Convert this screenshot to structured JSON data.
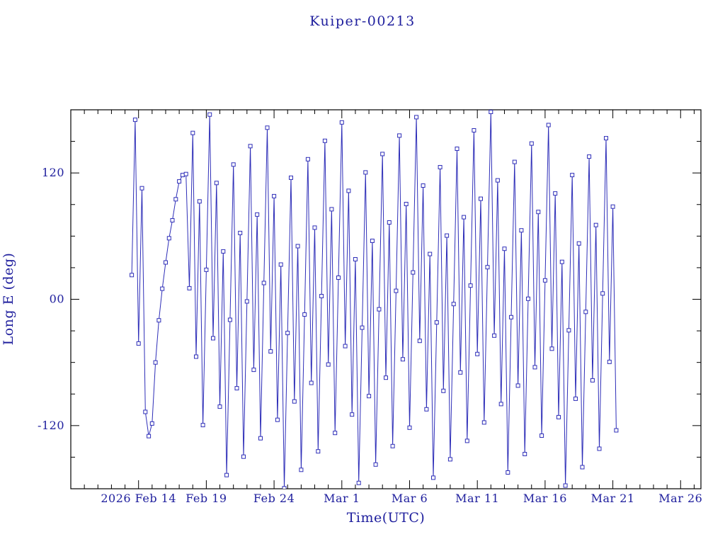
{
  "page": {
    "background": "#ffffff"
  },
  "chart_data": {
    "type": "line",
    "title": "Kuiper-00213",
    "xlabel": "Time(UTC)",
    "ylabel": "Long E (deg)",
    "axis": {
      "x_unit": "days from plot left edge",
      "x_range_days": [
        0,
        46.5
      ],
      "ylim": [
        -180,
        180
      ],
      "x_major_ticks": [
        {
          "day": 5,
          "label": "2026 Feb 14"
        },
        {
          "day": 10,
          "label": "Feb 19"
        },
        {
          "day": 15,
          "label": "Feb 24"
        },
        {
          "day": 20,
          "label": "Mar 1"
        },
        {
          "day": 25,
          "label": "Mar 6"
        },
        {
          "day": 30,
          "label": "Mar 11"
        },
        {
          "day": 35,
          "label": "Mar 16"
        },
        {
          "day": 40,
          "label": "Mar 21"
        },
        {
          "day": 45,
          "label": "Mar 26"
        }
      ],
      "x_minor_step_days": 1,
      "y_major_ticks": [
        {
          "value": -120,
          "label": "-120"
        },
        {
          "value": 0,
          "label": "00"
        },
        {
          "value": 120,
          "label": "120"
        }
      ],
      "y_minor_step_deg": 30,
      "grid": false
    },
    "marker": "open-square",
    "legend": null,
    "colors": {
      "data": "#2e2eb8",
      "text": "#20209e",
      "frame": "#000000",
      "background": "#ffffff"
    },
    "series": [
      {
        "name": "long-e",
        "t_start_day": 4.5,
        "t_step_days": 0.25,
        "values": [
          23,
          170.5,
          -42,
          105.5,
          -107,
          -130,
          -118,
          -60,
          -20,
          10,
          35,
          58,
          75,
          95,
          112,
          118,
          119,
          10.5,
          158,
          -54.5,
          93,
          -119.5,
          28,
          175.5,
          -37,
          110.5,
          -102,
          45.5,
          -167,
          -19.5,
          128,
          -84.5,
          63,
          -149.5,
          -2,
          145.5,
          -67,
          80.5,
          -132,
          15.5,
          163,
          -49.5,
          98,
          -114.5,
          33,
          -179.5,
          -32,
          115.5,
          -97,
          50.5,
          -162,
          -14.5,
          133,
          -79.5,
          68,
          -144.5,
          3,
          150.5,
          -62,
          85.5,
          -127,
          20.5,
          168,
          -44.5,
          103,
          -109.5,
          38,
          -174.5,
          -27,
          120.5,
          -92,
          55.5,
          -157,
          -9.5,
          138,
          -74.5,
          73,
          -139.5,
          8,
          155.5,
          -57,
          90.5,
          -122,
          25.5,
          173,
          -39.5,
          108,
          -104.5,
          43,
          -169.5,
          -22,
          125.5,
          -87,
          60.5,
          -152,
          -4.5,
          143,
          -69.5,
          78,
          -134.5,
          13,
          160.5,
          -52,
          95.5,
          -117,
          30.5,
          178,
          -34.5,
          113,
          -99.5,
          48,
          -164.5,
          -17,
          130.5,
          -82,
          65.5,
          -147,
          0.5,
          148,
          -64.5,
          83,
          -129.5,
          18,
          165.5,
          -47,
          100.5,
          -112,
          35.5,
          -177,
          -29.5,
          118,
          -94.5,
          53,
          -159.5,
          -12,
          135.5,
          -77,
          70.5,
          -142,
          5.5,
          153,
          -59.5,
          88,
          -124.5
        ]
      }
    ]
  }
}
